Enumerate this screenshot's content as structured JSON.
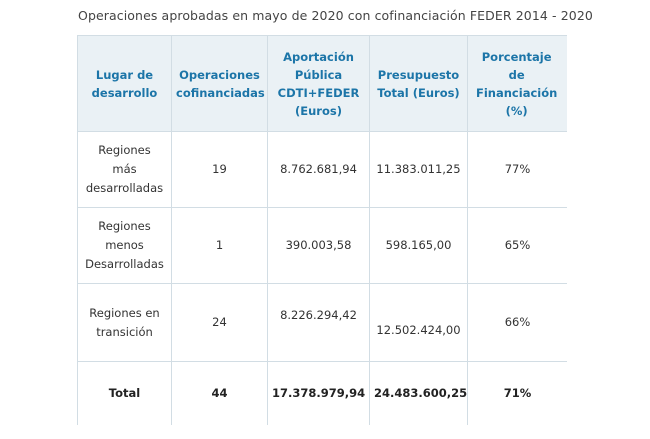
{
  "caption": "Operaciones aprobadas en mayo de 2020 con cofinanciación FEDER 2014 - 2020",
  "headers": {
    "lugar": [
      "Lugar de",
      "desarrollo"
    ],
    "operaciones": [
      "Operaciones",
      "cofinanciadas"
    ],
    "aportacion": [
      "Aportación",
      "Pública",
      "CDTI+FEDER",
      "(Euros)"
    ],
    "presupuesto": [
      "Presupuesto",
      "Total (Euros)"
    ],
    "porcentaje": [
      "Porcentaje",
      "de",
      "Financiación",
      "(%)"
    ]
  },
  "rows": [
    {
      "lugar": [
        "Regiones",
        "más",
        "desarrolladas"
      ],
      "operaciones": "19",
      "aportacion": "8.762.681,94",
      "presupuesto": "11.383.011,25",
      "porcentaje": "77%"
    },
    {
      "lugar": [
        "Regiones",
        "menos",
        "Desarrolladas"
      ],
      "operaciones": "1",
      "aportacion": "390.003,58",
      "presupuesto": "598.165,00",
      "porcentaje": "65%"
    },
    {
      "lugar": [
        "Regiones en",
        "transición"
      ],
      "operaciones": "24",
      "aportacion": "8.226.294,42",
      "presupuesto": "12.502.424,00",
      "porcentaje": "66%"
    }
  ],
  "total": {
    "lugar": "Total",
    "operaciones": "44",
    "aportacion": "17.378.979,94",
    "presupuesto": "24.483.600,25",
    "porcentaje": "71%"
  }
}
